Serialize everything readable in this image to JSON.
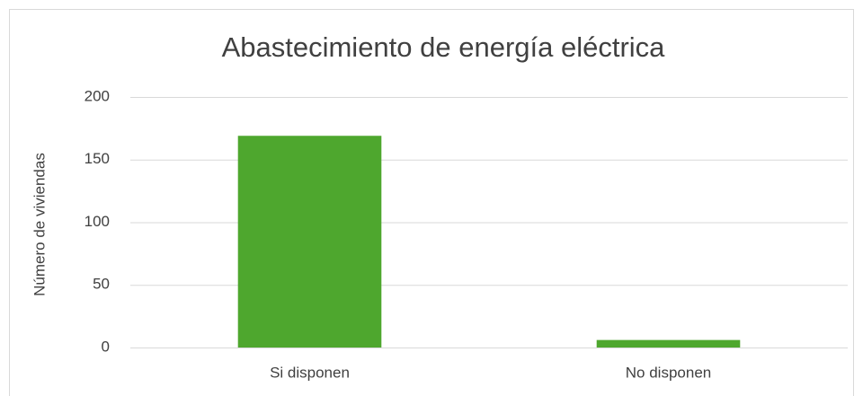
{
  "chart_data": {
    "type": "bar",
    "title": "Abastecimiento de energía eléctrica",
    "y_label": "Número de viviendas",
    "categories": [
      "Si disponen",
      "No disponen"
    ],
    "values": [
      169,
      6
    ],
    "color": "#4ea72e",
    "ylim": [
      0,
      200
    ],
    "yticks": [
      0,
      50,
      100,
      150,
      200
    ],
    "grid": true
  }
}
